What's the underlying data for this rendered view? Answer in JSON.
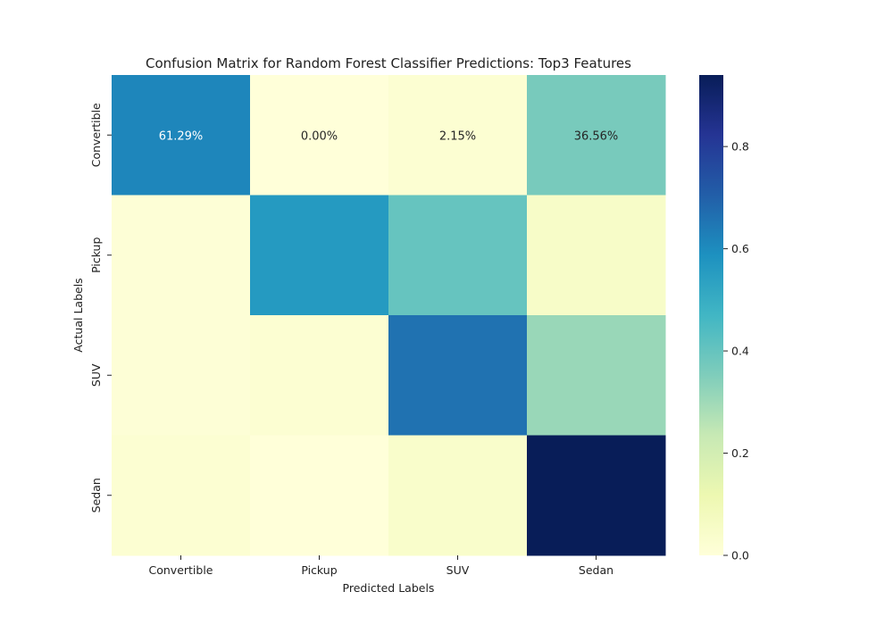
{
  "chart_data": {
    "type": "heatmap",
    "title": "Confusion Matrix for Random Forest Classifier Predictions: Top3 Features",
    "xlabel": "Predicted Labels",
    "ylabel": "Actual Labels",
    "x_categories": [
      "Convertible",
      "Pickup",
      "SUV",
      "Sedan"
    ],
    "y_categories": [
      "Convertible",
      "Pickup",
      "SUV",
      "Sedan"
    ],
    "values": [
      [
        0.6129,
        0.0,
        0.0215,
        0.3656
      ],
      [
        0.01,
        0.56,
        0.4,
        0.05
      ],
      [
        0.01,
        0.02,
        0.66,
        0.31
      ],
      [
        0.02,
        0.0,
        0.04,
        0.94
      ]
    ],
    "annotations": [
      [
        "61.29%",
        "0.00%",
        "2.15%",
        "36.56%"
      ],
      [
        "",
        "",
        "",
        ""
      ],
      [
        "",
        "",
        "",
        ""
      ],
      [
        "",
        "",
        "",
        ""
      ]
    ],
    "colorbar": {
      "range": [
        0,
        0.94
      ],
      "ticks": [
        0.0,
        0.2,
        0.4,
        0.6,
        0.8
      ],
      "tick_labels": [
        "0.0",
        "0.2",
        "0.4",
        "0.6",
        "0.8"
      ],
      "colormap": "YlGnBu"
    },
    "grid": false,
    "legend": "none"
  }
}
